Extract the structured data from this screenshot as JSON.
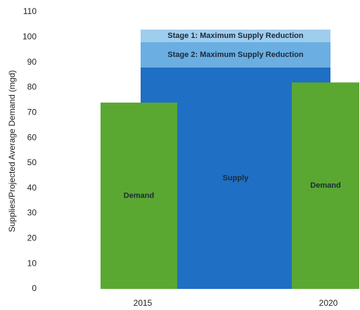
{
  "chart_data": {
    "type": "bar",
    "y_label": "Supplies/Projected Average Demand (mgd)",
    "ylim": [
      0,
      110
    ],
    "yticks": [
      0,
      10,
      20,
      30,
      40,
      50,
      60,
      70,
      80,
      90,
      100,
      110
    ],
    "categories": [
      "2015",
      "2020"
    ],
    "series": [
      {
        "name": "Demand",
        "color": "#5aa832",
        "values": [
          74,
          82
        ]
      }
    ],
    "stack": [
      {
        "name": "Supply",
        "color": "#1f6fc4",
        "value": 88
      },
      {
        "name": "Stage 2: Maximum Supply Reduction",
        "color": "#6aaee2",
        "value": 10
      },
      {
        "name": "Stage 1: Maximum Supply Reduction",
        "color": "#9fcdee",
        "value": 5
      }
    ]
  }
}
